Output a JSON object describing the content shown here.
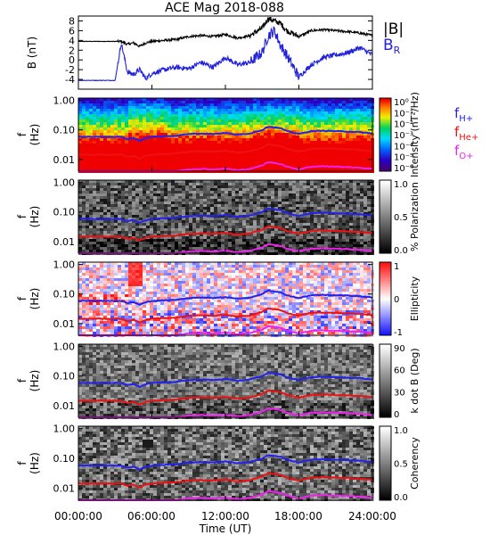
{
  "title": "ACE Mag 2018-088",
  "xaxis": {
    "label": "Time (UT)",
    "ticks": [
      "00:00:00",
      "06:00:00",
      "12:00:00",
      "18:00:00",
      "24:00:00"
    ],
    "range_hours": [
      0,
      24
    ]
  },
  "colors": {
    "B_total": "#000000",
    "B_R": "#2222dd",
    "f_H": "#2222ee",
    "f_He": "#ee1111",
    "f_O": "#ee22ee"
  },
  "chart_data": [
    {
      "type": "line",
      "title": "ACE Mag 2018-088",
      "ylabel": "B (nT)",
      "ylim": [
        -6,
        9
      ],
      "yticks": [
        -4,
        -2,
        0,
        2,
        4,
        6,
        8
      ],
      "legend": [
        {
          "name": "|B|",
          "color": "#000000"
        },
        {
          "name": "B_R",
          "color": "#2222dd"
        }
      ],
      "x_hours": [
        0,
        1,
        2,
        3,
        3.5,
        4,
        4.5,
        5,
        5.5,
        6,
        7,
        8,
        9,
        10,
        11,
        12,
        13,
        14,
        15,
        15.5,
        16,
        16.5,
        17,
        18,
        19,
        20,
        21,
        22,
        23,
        24
      ],
      "series": [
        {
          "name": "|B|",
          "values": [
            3.8,
            3.8,
            3.8,
            3.8,
            3.8,
            3.2,
            3.5,
            2.8,
            3.5,
            3.8,
            4.0,
            4.2,
            4.8,
            5.0,
            4.8,
            5.2,
            4.5,
            5.0,
            6.5,
            8.5,
            8.0,
            7.5,
            6.0,
            4.8,
            6.0,
            6.2,
            6.0,
            5.8,
            5.5,
            5.0
          ]
        },
        {
          "name": "B_R",
          "values": [
            -4.2,
            -4.2,
            -4.2,
            -4.2,
            3.5,
            -2.5,
            -3.0,
            -2.0,
            -3.8,
            -2.8,
            -2.0,
            -1.5,
            -1.8,
            -0.5,
            -1.5,
            0.5,
            -1.0,
            -0.5,
            1.5,
            5.0,
            6.0,
            3.0,
            1.0,
            -3.5,
            -1.0,
            0.5,
            1.0,
            1.5,
            2.5,
            1.0
          ]
        }
      ]
    },
    {
      "type": "heatmap",
      "quantity": "power",
      "ylabel": "f (Hz)",
      "yscale": "log",
      "ylim": [
        0.004,
        1.2
      ],
      "yticks": [
        "1.00",
        "0.10",
        "0.01"
      ],
      "colorbar": {
        "label": "Intensity (nT²/Hz)",
        "ticks": [
          "10⁰",
          "10⁻¹",
          "10⁻²",
          "10⁻³",
          "10⁻⁴",
          "10⁻⁵",
          "10⁻⁶"
        ],
        "range_log10": [
          -6.5,
          0
        ]
      },
      "legend": [
        {
          "name": "f_H+",
          "color": "#2222ee"
        },
        {
          "name": "f_He+",
          "color": "#ee1111"
        },
        {
          "name": "f_O+",
          "color": "#ee22ee"
        }
      ]
    },
    {
      "type": "heatmap",
      "quantity": "polarization",
      "ylabel": "f (Hz)",
      "yscale": "log",
      "ylim": [
        0.004,
        1.2
      ],
      "yticks": [
        "1.00",
        "0.10",
        "0.01"
      ],
      "colorbar": {
        "label": "% Polarization",
        "ticks": [
          "1.0",
          "0.5",
          "0.0"
        ],
        "range": [
          0,
          1
        ]
      }
    },
    {
      "type": "heatmap",
      "quantity": "ellipticity",
      "ylabel": "f (Hz)",
      "yscale": "log",
      "ylim": [
        0.004,
        1.2
      ],
      "yticks": [
        "1.00",
        "0.10",
        "0.01"
      ],
      "colorbar": {
        "label": "Ellipticity",
        "ticks": [
          "1",
          "0",
          "-1"
        ],
        "range": [
          -1,
          1
        ]
      }
    },
    {
      "type": "heatmap",
      "quantity": "k dot B",
      "ylabel": "f (Hz)",
      "yscale": "log",
      "ylim": [
        0.004,
        1.2
      ],
      "yticks": [
        "1.00",
        "0.10",
        "0.01"
      ],
      "colorbar": {
        "label": "k dot B (Deg)",
        "ticks": [
          "90",
          "60",
          "30",
          "0"
        ],
        "range": [
          0,
          90
        ]
      }
    },
    {
      "type": "heatmap",
      "quantity": "coherency",
      "ylabel": "f (Hz)",
      "yscale": "log",
      "ylim": [
        0.004,
        1.2
      ],
      "yticks": [
        "1.00",
        "0.10",
        "0.01"
      ],
      "colorbar": {
        "label": "Coherency",
        "ticks": [
          "1.0",
          "0.5",
          "0.0"
        ],
        "range": [
          0,
          1
        ]
      }
    }
  ],
  "gyrofrequency_lines": {
    "x_hours": [
      0,
      1,
      2,
      3,
      3.5,
      4,
      4.5,
      5,
      5.5,
      6,
      7,
      8,
      9,
      10,
      11,
      12,
      13,
      14,
      15,
      15.5,
      16,
      16.5,
      17,
      18,
      19,
      20,
      21,
      22,
      23,
      24
    ],
    "f_H_hz": [
      0.058,
      0.058,
      0.058,
      0.058,
      0.058,
      0.049,
      0.053,
      0.043,
      0.053,
      0.058,
      0.061,
      0.064,
      0.073,
      0.076,
      0.073,
      0.079,
      0.069,
      0.076,
      0.099,
      0.13,
      0.122,
      0.114,
      0.091,
      0.073,
      0.091,
      0.094,
      0.091,
      0.088,
      0.084,
      0.076
    ],
    "f_He_hz": [
      0.0145,
      0.0145,
      0.0145,
      0.0145,
      0.0145,
      0.0122,
      0.0133,
      0.0107,
      0.0133,
      0.0145,
      0.0152,
      0.016,
      0.0183,
      0.019,
      0.0183,
      0.0198,
      0.0171,
      0.019,
      0.0247,
      0.0324,
      0.0305,
      0.0286,
      0.0228,
      0.0183,
      0.0228,
      0.0236,
      0.0228,
      0.0221,
      0.0209,
      0.019
    ],
    "f_O_hz": [
      0.0036,
      0.0036,
      0.0036,
      0.0036,
      0.0036,
      0.0031,
      0.0033,
      0.0027,
      0.0033,
      0.0036,
      0.0038,
      0.004,
      0.0046,
      0.0048,
      0.0046,
      0.0049,
      0.0043,
      0.0048,
      0.0062,
      0.0081,
      0.0076,
      0.0071,
      0.0057,
      0.0046,
      0.0057,
      0.0059,
      0.0057,
      0.0055,
      0.0052,
      0.0048
    ]
  }
}
